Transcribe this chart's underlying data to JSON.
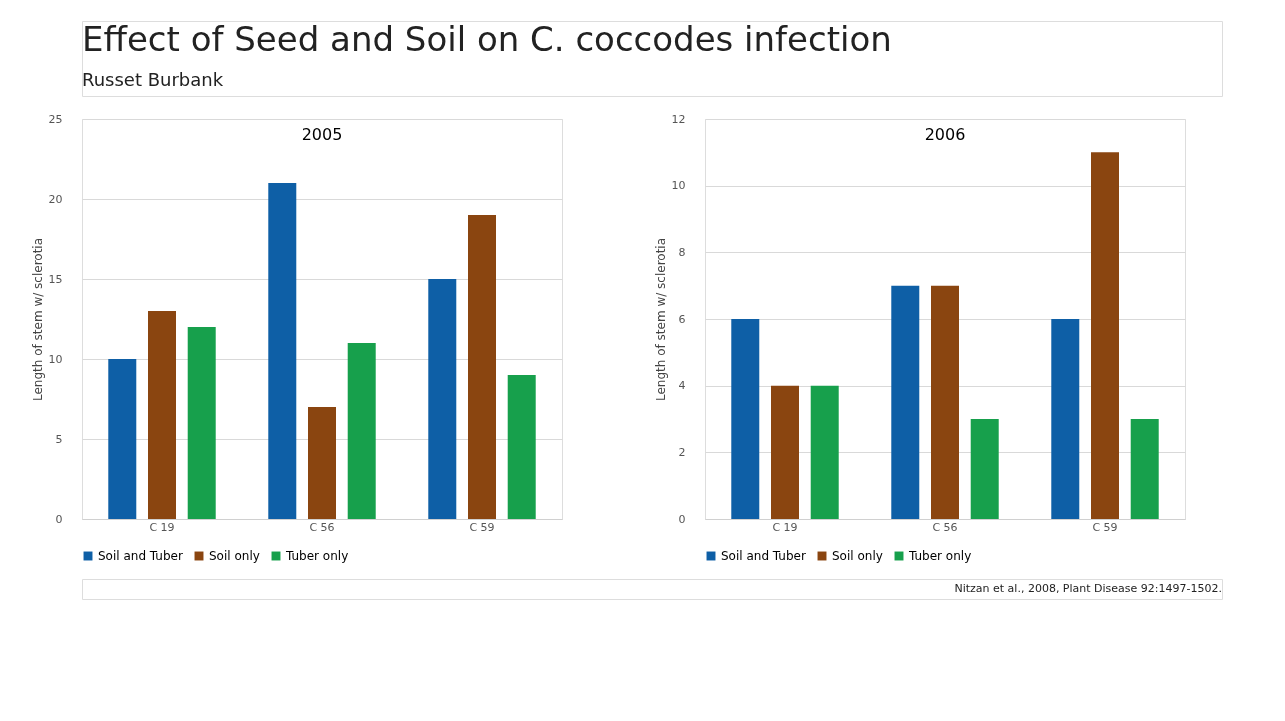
{
  "chart_data": [
    {
      "type": "other",
      "title": "Effect of Seed and Soil on C. coccodes infection",
      "subtitle": "Russet Burbank",
      "annotations": [
        "Nitzan et al., 2008, Plant Disease 92:1497-1502."
      ]
    },
    {
      "type": "bar",
      "title": "2005",
      "ylabel": "Length of stem w/ sclerotia",
      "categories": [
        "C 19",
        "C 56",
        "C 59"
      ],
      "series": [
        {
          "name": "Soil and Tuber",
          "color": "#0e5fa6",
          "values": [
            10,
            21,
            15
          ]
        },
        {
          "name": "Soil only",
          "color": "#8a4510",
          "values": [
            13,
            7,
            19
          ]
        },
        {
          "name": "Tuber only",
          "color": "#17a04c",
          "values": [
            12,
            11,
            9
          ]
        }
      ],
      "ylim": [
        0,
        25
      ],
      "yticks": [
        0,
        5,
        10,
        15,
        20,
        25
      ],
      "grid": "y",
      "legend": "bottom"
    },
    {
      "type": "bar",
      "title": "2006",
      "ylabel": "Length of stem w/ sclerotia",
      "categories": [
        "C 19",
        "C 56",
        "C 59"
      ],
      "series": [
        {
          "name": "Soil and Tuber",
          "color": "#0e5fa6",
          "values": [
            6,
            7,
            6
          ]
        },
        {
          "name": "Soil only",
          "color": "#8a4510",
          "values": [
            4,
            7,
            11
          ]
        },
        {
          "name": "Tuber only",
          "color": "#17a04c",
          "values": [
            4,
            3,
            3
          ]
        }
      ],
      "ylim": [
        0,
        12
      ],
      "yticks": [
        0,
        2,
        4,
        6,
        8,
        10,
        12
      ],
      "grid": "y",
      "legend": "bottom"
    }
  ]
}
